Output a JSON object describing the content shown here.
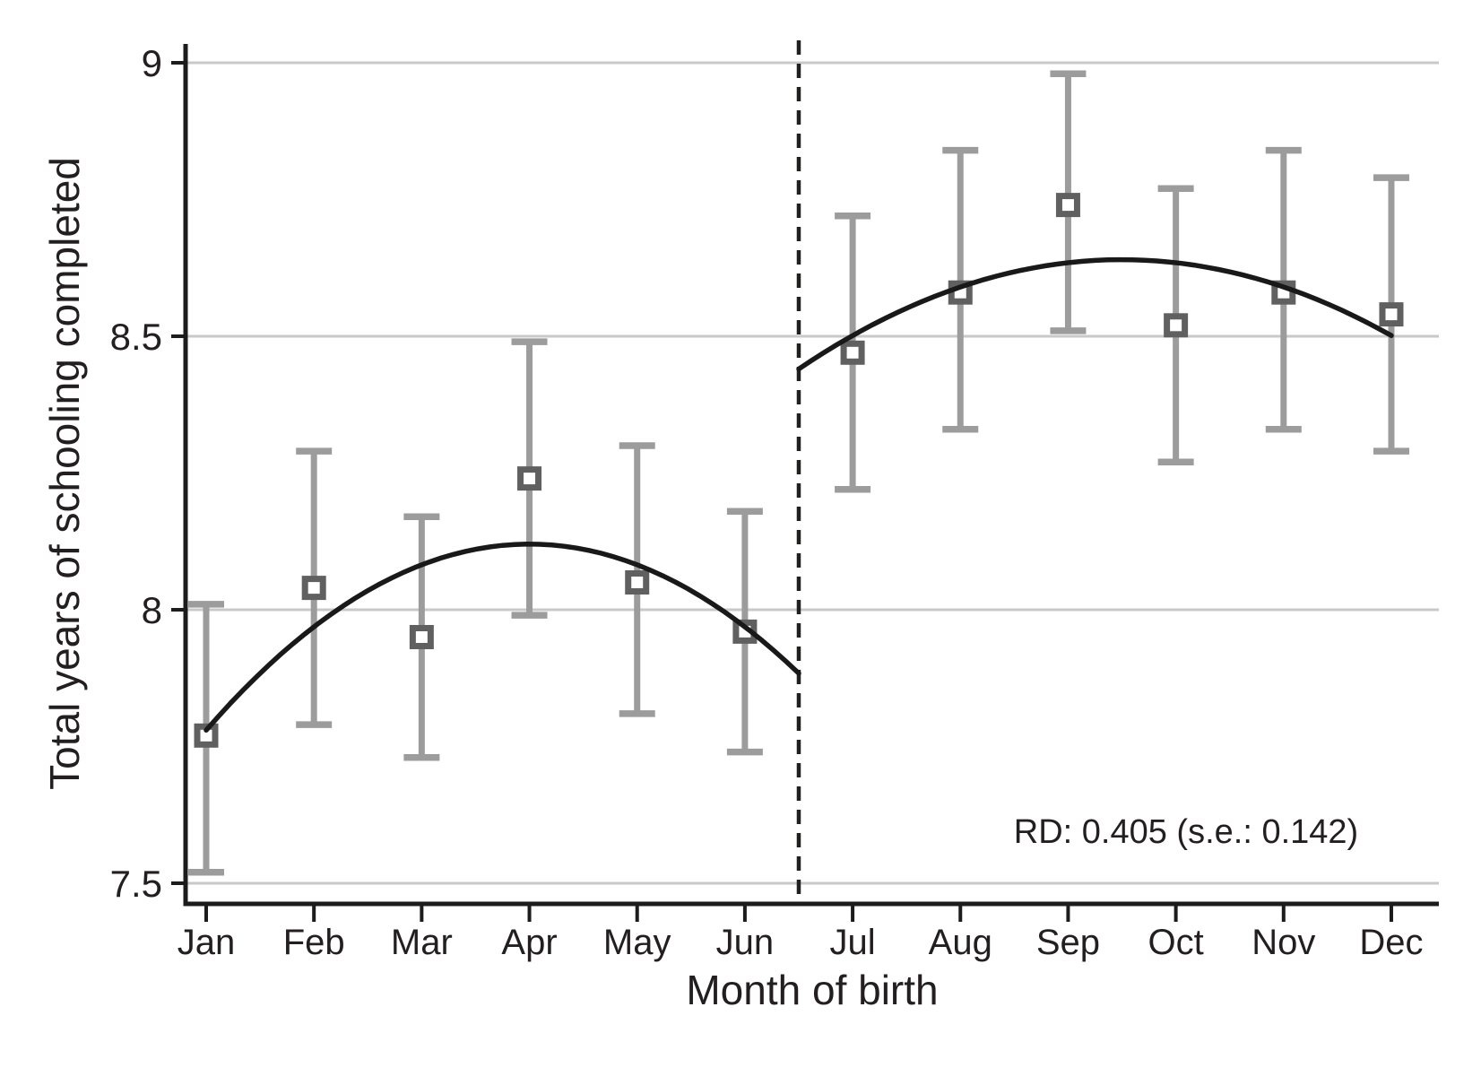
{
  "figure": {
    "ylabel": "Total years of schooling completed",
    "xlabel": "Month of birth",
    "annotation": "RD: 0.405 (s.e.: 0.142)"
  },
  "chart_data": {
    "type": "scatter",
    "subtype": "regression-discontinuity-errorbar",
    "title": "",
    "xlabel": "Month of birth",
    "ylabel": "Total years of schooling completed",
    "annotation": "RD: 0.405 (s.e.: 0.142)",
    "rd_estimate": 0.405,
    "rd_se": 0.142,
    "categories": [
      "Jan",
      "Feb",
      "Mar",
      "Apr",
      "May",
      "Jun",
      "Jul",
      "Aug",
      "Sep",
      "Oct",
      "Nov",
      "Dec"
    ],
    "points": [
      {
        "month": "Jan",
        "x": 1,
        "y": 7.77,
        "ci_low": 7.52,
        "ci_high": 8.01
      },
      {
        "month": "Feb",
        "x": 2,
        "y": 8.04,
        "ci_low": 7.79,
        "ci_high": 8.29
      },
      {
        "month": "Mar",
        "x": 3,
        "y": 7.95,
        "ci_low": 7.73,
        "ci_high": 8.17
      },
      {
        "month": "Apr",
        "x": 4,
        "y": 8.24,
        "ci_low": 7.99,
        "ci_high": 8.49
      },
      {
        "month": "May",
        "x": 5,
        "y": 8.05,
        "ci_low": 7.81,
        "ci_high": 8.3
      },
      {
        "month": "Jun",
        "x": 6,
        "y": 7.96,
        "ci_low": 7.74,
        "ci_high": 8.18
      },
      {
        "month": "Jul",
        "x": 7,
        "y": 8.47,
        "ci_low": 8.22,
        "ci_high": 8.72
      },
      {
        "month": "Aug",
        "x": 8,
        "y": 8.58,
        "ci_low": 8.33,
        "ci_high": 8.84
      },
      {
        "month": "Sep",
        "x": 9,
        "y": 8.74,
        "ci_low": 8.51,
        "ci_high": 8.98
      },
      {
        "month": "Oct",
        "x": 10,
        "y": 8.52,
        "ci_low": 8.27,
        "ci_high": 8.77
      },
      {
        "month": "Nov",
        "x": 11,
        "y": 8.58,
        "ci_low": 8.33,
        "ci_high": 8.84
      },
      {
        "month": "Dec",
        "x": 12,
        "y": 8.54,
        "ci_low": 8.29,
        "ci_high": 8.79
      }
    ],
    "fit_curves": [
      {
        "name": "pre-cutoff-quadratic",
        "x_from": 1.0,
        "x_to": 6.5,
        "vertex_x": 4.0,
        "vertex_y": 8.12,
        "curvature": -0.0378
      },
      {
        "name": "post-cutoff-quadratic",
        "x_from": 6.5,
        "x_to": 12.0,
        "vertex_x": 9.5,
        "vertex_y": 8.64,
        "curvature": -0.0222
      }
    ],
    "cutoff": {
      "x": 6.5,
      "style": "dashed"
    },
    "y_ticks": [
      7.5,
      8,
      8.5,
      9
    ],
    "y_tick_labels": [
      "7.5",
      "8",
      "8.5",
      "9"
    ],
    "ylim": [
      7.46,
      9.03
    ],
    "xlim": [
      0.81,
      12.44
    ],
    "grid": "horizontal",
    "legend": "none",
    "colors": {
      "errorbar": "#9c9c9c",
      "marker": "#606060",
      "marker_fill": "#ffffff",
      "fit_line": "#191919",
      "gridline": "#c9c9c9",
      "axis": "#1c1c1c",
      "cutoff_line": "#221f1f",
      "text": "#231f20"
    }
  }
}
